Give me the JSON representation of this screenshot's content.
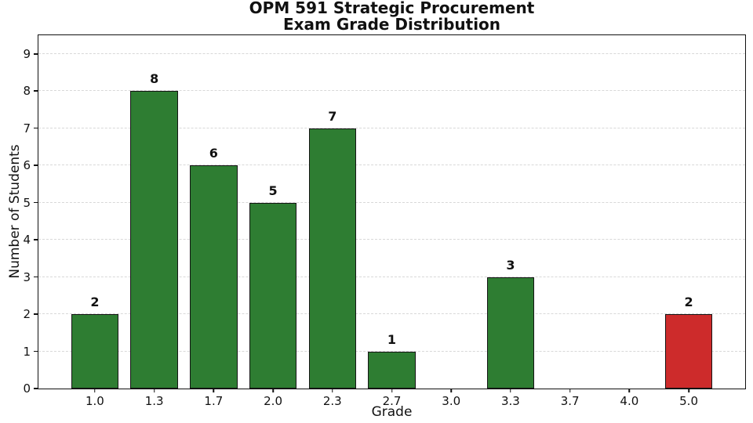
{
  "chart_data": {
    "type": "bar",
    "title": "OPM 591 Strategic Procurement",
    "subtitle": "Exam Grade Distribution",
    "xlabel": "Grade",
    "ylabel": "Number of Students",
    "categories": [
      "1.0",
      "1.3",
      "1.7",
      "2.0",
      "2.3",
      "2.7",
      "3.0",
      "3.3",
      "3.7",
      "4.0",
      "5.0"
    ],
    "values": [
      2,
      8,
      6,
      5,
      7,
      1,
      0,
      3,
      0,
      0,
      2
    ],
    "bar_colors": [
      "#2e7d32",
      "#2e7d32",
      "#2e7d32",
      "#2e7d32",
      "#2e7d32",
      "#2e7d32",
      "#2e7d32",
      "#2e7d32",
      "#2e7d32",
      "#2e7d32",
      "#cd2b2b"
    ],
    "colors": {
      "pass_green": "#2e7d32",
      "fail_red": "#cd2b2b",
      "bar_edge": "#151515",
      "grid": "#d8d8d8",
      "spine": "#111111",
      "text": "#111111"
    },
    "ylim": [
      0,
      9.5
    ],
    "xlim": [
      -0.95,
      10.95
    ],
    "yticks": [
      0,
      1,
      2,
      3,
      4,
      5,
      6,
      7,
      8,
      9
    ],
    "bar_width": 0.8,
    "grid_axis": "y",
    "grid_style": "dashed",
    "legend": null,
    "value_labels_shown_for_nonzero_bars": true
  }
}
